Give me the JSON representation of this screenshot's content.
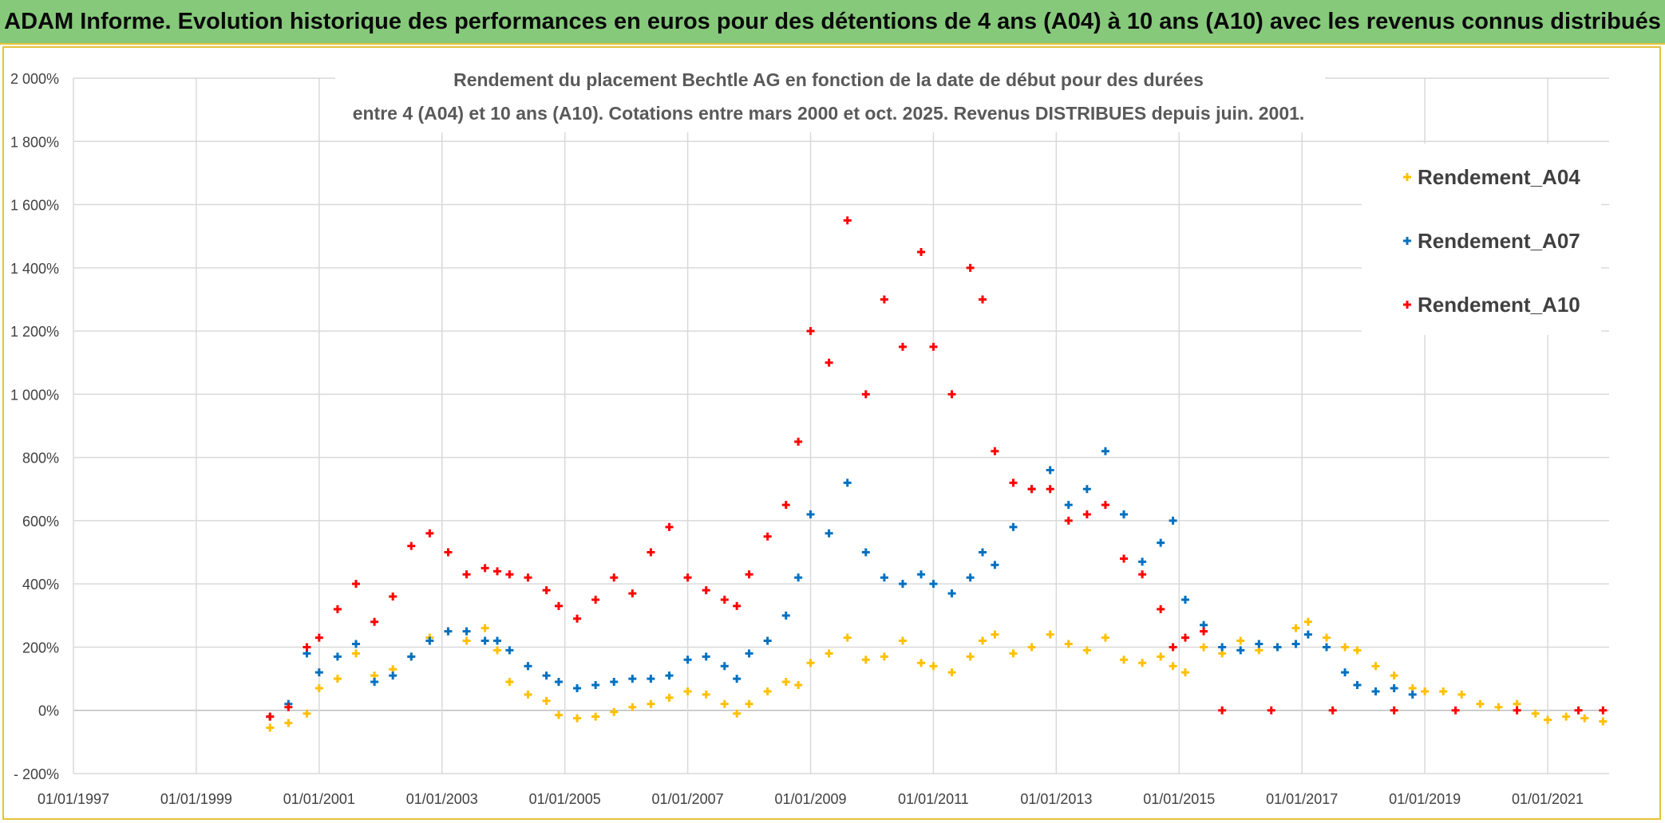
{
  "banner": {
    "title": "ADAM Informe. Evolution historique des performances en euros pour des détentions de 4 ans (A04) à 10 ans (A10) avec les revenus connus distribués"
  },
  "chart_data": {
    "type": "scatter",
    "title_line1": "Rendement du placement Bechtle AG en fonction de la date de début pour des durées",
    "title_line2": "entre 4 (A04) et 10 ans (A10). Cotations entre mars 2000 et oct. 2025. Revenus DISTRIBUES depuis juin. 2001.",
    "xlabel": "",
    "ylabel": "",
    "x_range": [
      1997.0,
      2022.0
    ],
    "y_range": [
      -200,
      2000
    ],
    "y_ticks": [
      -200,
      0,
      200,
      400,
      600,
      800,
      1000,
      1200,
      1400,
      1600,
      1800,
      2000
    ],
    "y_tick_labels": [
      "- 200%",
      "0%",
      "200%",
      "400%",
      "600%",
      "800%",
      "1 000%",
      "1 200%",
      "1 400%",
      "1 600%",
      "1 800%",
      "2 000%"
    ],
    "x_ticks": [
      1997,
      1999,
      2001,
      2003,
      2005,
      2007,
      2009,
      2011,
      2013,
      2015,
      2017,
      2019,
      2021
    ],
    "x_tick_labels": [
      "01/01/1997",
      "01/01/1999",
      "01/01/2001",
      "01/01/2003",
      "01/01/2005",
      "01/01/2007",
      "01/01/2009",
      "01/01/2011",
      "01/01/2013",
      "01/01/2015",
      "01/01/2017",
      "01/01/2019",
      "01/01/2021"
    ],
    "grid": true,
    "legend_position": "right",
    "series": [
      {
        "name": "Rendement_A04",
        "color": "#ffc000",
        "points": [
          [
            2000.2,
            -55
          ],
          [
            2000.5,
            -40
          ],
          [
            2000.8,
            -10
          ],
          [
            2001.0,
            70
          ],
          [
            2001.3,
            100
          ],
          [
            2001.6,
            180
          ],
          [
            2001.9,
            110
          ],
          [
            2002.2,
            130
          ],
          [
            2002.5,
            170
          ],
          [
            2002.8,
            230
          ],
          [
            2003.1,
            250
          ],
          [
            2003.4,
            220
          ],
          [
            2003.7,
            260
          ],
          [
            2003.9,
            190
          ],
          [
            2004.1,
            90
          ],
          [
            2004.4,
            50
          ],
          [
            2004.7,
            30
          ],
          [
            2004.9,
            -15
          ],
          [
            2005.2,
            -25
          ],
          [
            2005.5,
            -20
          ],
          [
            2005.8,
            -5
          ],
          [
            2006.1,
            10
          ],
          [
            2006.4,
            20
          ],
          [
            2006.7,
            40
          ],
          [
            2007.0,
            60
          ],
          [
            2007.3,
            50
          ],
          [
            2007.6,
            20
          ],
          [
            2007.8,
            -10
          ],
          [
            2008.0,
            20
          ],
          [
            2008.3,
            60
          ],
          [
            2008.6,
            90
          ],
          [
            2008.8,
            80
          ],
          [
            2009.0,
            150
          ],
          [
            2009.3,
            180
          ],
          [
            2009.6,
            230
          ],
          [
            2009.9,
            160
          ],
          [
            2010.2,
            170
          ],
          [
            2010.5,
            220
          ],
          [
            2010.8,
            150
          ],
          [
            2011.0,
            140
          ],
          [
            2011.3,
            120
          ],
          [
            2011.6,
            170
          ],
          [
            2011.8,
            220
          ],
          [
            2012.0,
            240
          ],
          [
            2012.3,
            180
          ],
          [
            2012.6,
            200
          ],
          [
            2012.9,
            240
          ],
          [
            2013.2,
            210
          ],
          [
            2013.5,
            190
          ],
          [
            2013.8,
            230
          ],
          [
            2014.1,
            160
          ],
          [
            2014.4,
            150
          ],
          [
            2014.7,
            170
          ],
          [
            2014.9,
            140
          ],
          [
            2015.1,
            120
          ],
          [
            2015.4,
            200
          ],
          [
            2015.7,
            180
          ],
          [
            2016.0,
            220
          ],
          [
            2016.3,
            190
          ],
          [
            2016.6,
            200
          ],
          [
            2016.9,
            260
          ],
          [
            2017.1,
            280
          ],
          [
            2017.4,
            230
          ],
          [
            2017.7,
            200
          ],
          [
            2017.9,
            190
          ],
          [
            2018.2,
            140
          ],
          [
            2018.5,
            110
          ],
          [
            2018.8,
            70
          ],
          [
            2019.0,
            60
          ],
          [
            2019.3,
            60
          ],
          [
            2019.6,
            50
          ],
          [
            2019.9,
            20
          ],
          [
            2020.2,
            10
          ],
          [
            2020.5,
            20
          ],
          [
            2020.8,
            -10
          ],
          [
            2021.0,
            -30
          ],
          [
            2021.3,
            -20
          ],
          [
            2021.6,
            -25
          ],
          [
            2021.9,
            -35
          ]
        ]
      },
      {
        "name": "Rendement_A07",
        "color": "#0070c0",
        "points": [
          [
            2000.2,
            -20
          ],
          [
            2000.5,
            20
          ],
          [
            2000.8,
            180
          ],
          [
            2001.0,
            120
          ],
          [
            2001.3,
            170
          ],
          [
            2001.6,
            210
          ],
          [
            2001.9,
            90
          ],
          [
            2002.2,
            110
          ],
          [
            2002.5,
            170
          ],
          [
            2002.8,
            220
          ],
          [
            2003.1,
            250
          ],
          [
            2003.4,
            250
          ],
          [
            2003.7,
            220
          ],
          [
            2003.9,
            220
          ],
          [
            2004.1,
            190
          ],
          [
            2004.4,
            140
          ],
          [
            2004.7,
            110
          ],
          [
            2004.9,
            90
          ],
          [
            2005.2,
            70
          ],
          [
            2005.5,
            80
          ],
          [
            2005.8,
            90
          ],
          [
            2006.1,
            100
          ],
          [
            2006.4,
            100
          ],
          [
            2006.7,
            110
          ],
          [
            2007.0,
            160
          ],
          [
            2007.3,
            170
          ],
          [
            2007.6,
            140
          ],
          [
            2007.8,
            100
          ],
          [
            2008.0,
            180
          ],
          [
            2008.3,
            220
          ],
          [
            2008.6,
            300
          ],
          [
            2008.8,
            420
          ],
          [
            2009.0,
            620
          ],
          [
            2009.3,
            560
          ],
          [
            2009.6,
            720
          ],
          [
            2009.9,
            500
          ],
          [
            2010.2,
            420
          ],
          [
            2010.5,
            400
          ],
          [
            2010.8,
            430
          ],
          [
            2011.0,
            400
          ],
          [
            2011.3,
            370
          ],
          [
            2011.6,
            420
          ],
          [
            2011.8,
            500
          ],
          [
            2012.0,
            460
          ],
          [
            2012.3,
            580
          ],
          [
            2012.6,
            700
          ],
          [
            2012.9,
            760
          ],
          [
            2013.2,
            650
          ],
          [
            2013.5,
            700
          ],
          [
            2013.8,
            820
          ],
          [
            2014.1,
            620
          ],
          [
            2014.4,
            470
          ],
          [
            2014.7,
            530
          ],
          [
            2014.9,
            600
          ],
          [
            2015.1,
            350
          ],
          [
            2015.4,
            270
          ],
          [
            2015.7,
            200
          ],
          [
            2016.0,
            190
          ],
          [
            2016.3,
            210
          ],
          [
            2016.6,
            200
          ],
          [
            2016.9,
            210
          ],
          [
            2017.1,
            240
          ],
          [
            2017.4,
            200
          ],
          [
            2017.7,
            120
          ],
          [
            2017.9,
            80
          ],
          [
            2018.2,
            60
          ],
          [
            2018.5,
            70
          ],
          [
            2018.8,
            50
          ]
        ]
      },
      {
        "name": "Rendement_A10",
        "color": "#ff0000",
        "points": [
          [
            2000.2,
            -20
          ],
          [
            2000.5,
            10
          ],
          [
            2000.8,
            200
          ],
          [
            2001.0,
            230
          ],
          [
            2001.3,
            320
          ],
          [
            2001.6,
            400
          ],
          [
            2001.9,
            280
          ],
          [
            2002.2,
            360
          ],
          [
            2002.5,
            520
          ],
          [
            2002.8,
            560
          ],
          [
            2003.1,
            500
          ],
          [
            2003.4,
            430
          ],
          [
            2003.7,
            450
          ],
          [
            2003.9,
            440
          ],
          [
            2004.1,
            430
          ],
          [
            2004.4,
            420
          ],
          [
            2004.7,
            380
          ],
          [
            2004.9,
            330
          ],
          [
            2005.2,
            290
          ],
          [
            2005.5,
            350
          ],
          [
            2005.8,
            420
          ],
          [
            2006.1,
            370
          ],
          [
            2006.4,
            500
          ],
          [
            2006.7,
            580
          ],
          [
            2007.0,
            420
          ],
          [
            2007.3,
            380
          ],
          [
            2007.6,
            350
          ],
          [
            2007.8,
            330
          ],
          [
            2008.0,
            430
          ],
          [
            2008.3,
            550
          ],
          [
            2008.6,
            650
          ],
          [
            2008.8,
            850
          ],
          [
            2009.0,
            1200
          ],
          [
            2009.3,
            1100
          ],
          [
            2009.6,
            1550
          ],
          [
            2009.9,
            1000
          ],
          [
            2010.2,
            1300
          ],
          [
            2010.5,
            1150
          ],
          [
            2010.8,
            1450
          ],
          [
            2011.0,
            1150
          ],
          [
            2011.3,
            1000
          ],
          [
            2011.6,
            1400
          ],
          [
            2011.8,
            1300
          ],
          [
            2012.0,
            820
          ],
          [
            2012.3,
            720
          ],
          [
            2012.6,
            700
          ],
          [
            2012.9,
            700
          ],
          [
            2013.2,
            600
          ],
          [
            2013.5,
            620
          ],
          [
            2013.8,
            650
          ],
          [
            2014.1,
            480
          ],
          [
            2014.4,
            430
          ],
          [
            2014.7,
            320
          ],
          [
            2014.9,
            200
          ],
          [
            2015.1,
            230
          ],
          [
            2015.4,
            250
          ],
          [
            2015.7,
            0
          ],
          [
            2016.5,
            0
          ],
          [
            2017.5,
            0
          ],
          [
            2018.5,
            0
          ],
          [
            2019.5,
            0
          ],
          [
            2020.5,
            0
          ],
          [
            2021.5,
            0
          ],
          [
            2021.9,
            0
          ]
        ]
      }
    ]
  }
}
